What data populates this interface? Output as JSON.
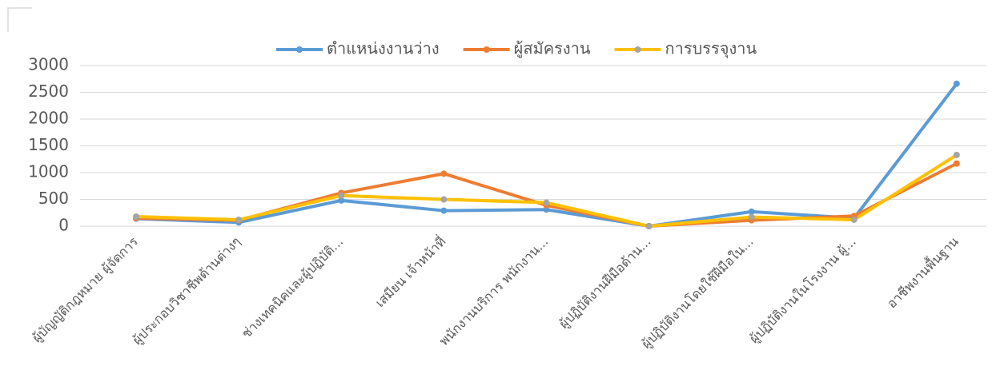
{
  "chart_data": {
    "type": "line",
    "categories": [
      "ผู้บัญญัติกฎหมาย ผู้จัดการ",
      "ผู้ประกอบวิชาชีพด้านต่างๆ",
      "ช่างเทคนิคและผู้ปฏิบัติ...",
      "เสมียน เจ้าหน้าที่",
      "พนักงานบริการ พนักงาน...",
      "ผู้ปฏิบัติงานฝีมือด้าน...",
      "ผู้ปฏิบัติงานโดยใช้ฝีมือใน...",
      "ผู้ปฏิบัติงานในโรงงาน ผู้...",
      "อาชีพงานพื้นฐาน"
    ],
    "series": [
      {
        "name": "ตำแหน่งงานว่าง",
        "color": "#5b9bd5",
        "marker_color": "#5b9bd5",
        "values": [
          140,
          70,
          480,
          290,
          310,
          0,
          270,
          150,
          2660
        ]
      },
      {
        "name": "ผู้สมัครงาน",
        "color": "#ed7d31",
        "marker_color": "#ed7d31",
        "values": [
          150,
          110,
          620,
          980,
          390,
          0,
          110,
          190,
          1170
        ]
      },
      {
        "name": "การบรรจุงาน",
        "color": "#ffc000",
        "marker_color": "#a5a5a5",
        "values": [
          180,
          120,
          570,
          500,
          440,
          0,
          170,
          120,
          1330
        ]
      }
    ],
    "ylim": [
      0,
      3000
    ],
    "yticks": [
      0,
      500,
      1000,
      1500,
      2000,
      2500,
      3000
    ],
    "grid": true,
    "legend": "top"
  }
}
